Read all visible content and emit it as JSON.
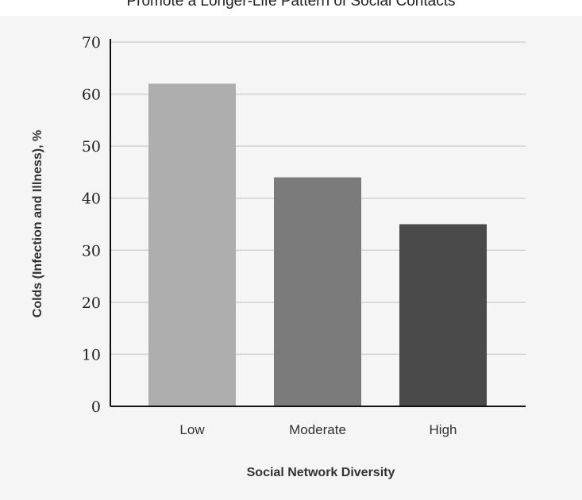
{
  "caption": "Promote a Longer-Life Pattern of Social Contacts",
  "chart_data": {
    "type": "bar",
    "categories": [
      "Low",
      "Moderate",
      "High"
    ],
    "values": [
      62,
      44,
      35
    ],
    "colors": [
      "#aeaeae",
      "#7b7b7b",
      "#4a4a4a"
    ],
    "xlabel": "Social Network Diversity",
    "ylabel": "Colds (Infection and Illness), %",
    "ylim": [
      0,
      70
    ],
    "yticks": [
      0,
      10,
      20,
      30,
      40,
      50,
      60,
      70
    ],
    "grid": true
  }
}
